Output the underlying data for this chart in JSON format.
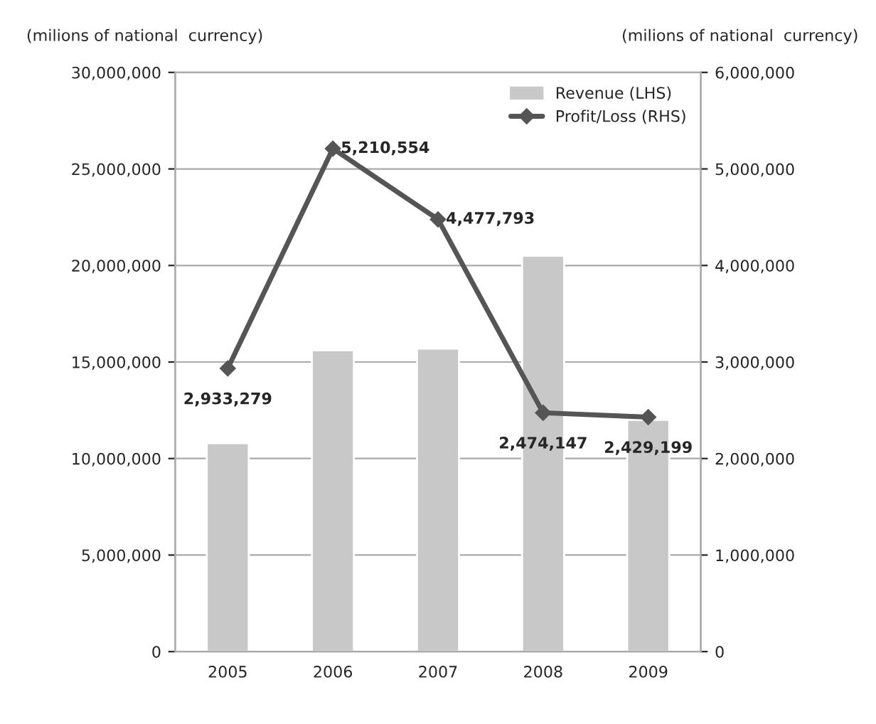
{
  "chart_data": {
    "type": "bar",
    "ylabel": "(milions of national  currency)",
    "y2label": "(milions of national  currency)",
    "categories": [
      "2005",
      "2006",
      "2007",
      "2008",
      "2009"
    ],
    "series": [
      {
        "name": "Revenue (LHS)",
        "color": "#c8c8c8",
        "values": [
          10800000,
          15600000,
          15700000,
          20500000,
          12000000
        ]
      },
      {
        "name": "Profit/Loss (RHS)",
        "type": "line",
        "axis": "y2",
        "color": "#555555",
        "marker": "diamond",
        "line_style": "solid",
        "values": [
          2933279,
          5210554,
          4477793,
          2474147,
          2429199
        ],
        "value_labels": [
          "2,933,279",
          "5,210,554",
          "4,477,793",
          "2,474,147",
          "2,429,199"
        ]
      }
    ],
    "ylim": [
      0,
      30000000
    ],
    "yticks": [
      {
        "value": 0,
        "label": "0"
      },
      {
        "value": 5000000,
        "label": "5,000,000"
      },
      {
        "value": 10000000,
        "label": "10,000,000"
      },
      {
        "value": 15000000,
        "label": "15,000,000"
      },
      {
        "value": 20000000,
        "label": "20,000,000"
      },
      {
        "value": 25000000,
        "label": "25,000,000"
      },
      {
        "value": 30000000,
        "label": "30,000,000"
      }
    ],
    "y2lim": [
      0,
      6000000
    ],
    "y2ticks": [
      {
        "value": 0,
        "label": "0"
      },
      {
        "value": 1000000,
        "label": "1,000,000"
      },
      {
        "value": 2000000,
        "label": "2,000,000"
      },
      {
        "value": 3000000,
        "label": "3,000,000"
      },
      {
        "value": 4000000,
        "label": "4,000,000"
      },
      {
        "value": 5000000,
        "label": "5,000,000"
      },
      {
        "value": 6000000,
        "label": "6,000,000"
      }
    ],
    "grid": "y",
    "legend": "top right"
  }
}
